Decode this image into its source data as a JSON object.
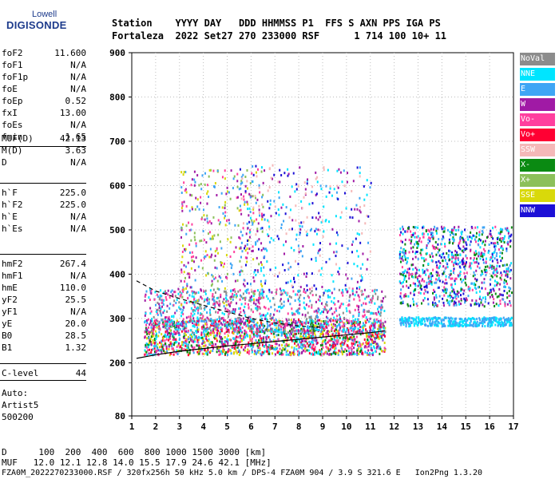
{
  "logo": {
    "top": "Lowell",
    "main": "DIGISONDE"
  },
  "header": {
    "line1": "Station    YYYY DAY   DDD HHMMSS P1  FFS S AXN PPS IGA PS",
    "line2": "Fortaleza  2022 Set27 270 233000 RSF      1 714 100 10+ 11"
  },
  "params": {
    "group1": [
      {
        "label": "foF2",
        "value": "11.600"
      },
      {
        "label": "foF1",
        "value": "N/A"
      },
      {
        "label": "foF1p",
        "value": "N/A"
      },
      {
        "label": "foE",
        "value": "N/A"
      },
      {
        "label": "foEp",
        "value": "0.52"
      },
      {
        "label": "fxI",
        "value": "13.00"
      },
      {
        "label": "foEs",
        "value": "N/A"
      },
      {
        "label": "fmin",
        "value": "1.65"
      }
    ],
    "group2": [
      {
        "label": "MUF(D)",
        "value": "42.13"
      },
      {
        "label": "M(D)",
        "value": "3.63"
      },
      {
        "label": "D",
        "value": "N/A"
      }
    ],
    "group3": [
      {
        "label": "h`F",
        "value": "225.0"
      },
      {
        "label": "h`F2",
        "value": "225.0"
      },
      {
        "label": "h`E",
        "value": "N/A"
      },
      {
        "label": "h`Es",
        "value": "N/A"
      }
    ],
    "group4": [
      {
        "label": "hmF2",
        "value": "267.4"
      },
      {
        "label": "hmF1",
        "value": "N/A"
      },
      {
        "label": "hmE",
        "value": "110.0"
      },
      {
        "label": "yF2",
        "value": "25.5"
      },
      {
        "label": "yF1",
        "value": "N/A"
      },
      {
        "label": "yE",
        "value": "20.0"
      },
      {
        "label": "B0",
        "value": "28.5"
      },
      {
        "label": "B1",
        "value": "1.32"
      }
    ],
    "clevel": {
      "label": "C-level",
      "value": "44"
    },
    "auto": [
      "Auto:",
      "Artist5",
      "500200"
    ]
  },
  "legend": [
    {
      "label": "NoVal",
      "color": "#8c8c8c"
    },
    {
      "label": "NNE",
      "color": "#00e5ff"
    },
    {
      "label": "E",
      "color": "#3ea5f5"
    },
    {
      "label": "W",
      "color": "#a01aa5"
    },
    {
      "label": "Vo-",
      "color": "#ff3f9e"
    },
    {
      "label": "Vo+",
      "color": "#ff0033"
    },
    {
      "label": "SSW",
      "color": "#f5b8b8"
    },
    {
      "label": "X-",
      "color": "#0a8a12"
    },
    {
      "label": "X+",
      "color": "#8cc05a"
    },
    {
      "label": "SSE",
      "color": "#d9d90a"
    },
    {
      "label": "NNW",
      "color": "#1c10d6"
    }
  ],
  "footer": {
    "line1": "D      100  200  400  600  800 1000 1500 3000 [km]",
    "line2": "MUF   12.0 12.1 12.8 14.0 15.5 17.9 24.6 42.1 [MHz]",
    "line3": "FZA0M_2022270233000.RSF / 320fx256h 50 kHz 5.0 km / DPS-4 FZA0M 904 / 3.9 S 321.6 E   Ion2Png 1.3.20"
  },
  "chart_data": {
    "type": "scatter",
    "xlim": [
      1,
      17
    ],
    "ylim": [
      80,
      900
    ],
    "xticks": [
      1,
      2,
      3,
      4,
      5,
      6,
      7,
      8,
      9,
      10,
      11,
      12,
      13,
      14,
      15,
      16,
      17
    ],
    "yticks": [
      80,
      200,
      300,
      400,
      500,
      600,
      700,
      800,
      900
    ],
    "grid": true,
    "legend_position": "right",
    "traces": [
      {
        "name": "trace-lower",
        "x": [
          1.2,
          2.0,
          3.0,
          4.0,
          5.0,
          6.0,
          7.0,
          8.0,
          9.0,
          10.0,
          11.0,
          11.6
        ],
        "y": [
          210,
          218,
          226,
          232,
          238,
          243,
          248,
          253,
          258,
          263,
          268,
          272
        ]
      },
      {
        "name": "trace-dashed",
        "x": [
          1.2,
          2.0,
          3.0,
          4.0,
          5.0,
          6.0,
          7.0,
          8.0,
          9.0
        ],
        "y": [
          385,
          362,
          345,
          330,
          315,
          300,
          290,
          283,
          280
        ],
        "dashed": true
      }
    ],
    "clusters": [
      {
        "x": [
          1.5,
          11.6
        ],
        "y": [
          220,
          300
        ],
        "density": "high",
        "series": [
          "Vo+",
          "Vo-",
          "X-",
          "NNE",
          "E",
          "W",
          "SSE"
        ]
      },
      {
        "x": [
          1.5,
          11.6
        ],
        "y": [
          270,
          370
        ],
        "density": "medium",
        "series": [
          "E",
          "NNE",
          "W",
          "Vo-",
          "NoVal"
        ]
      },
      {
        "x": [
          3.0,
          6.5
        ],
        "y": [
          330,
          640
        ],
        "density": "low",
        "series": [
          "W",
          "SSE",
          "X+",
          "Vo-",
          "E"
        ]
      },
      {
        "x": [
          5.5,
          11.0
        ],
        "y": [
          360,
          650
        ],
        "density": "low",
        "series": [
          "E",
          "NNE",
          "W",
          "SSW",
          "NNW"
        ]
      },
      {
        "x": [
          12.2,
          16.9
        ],
        "y": [
          330,
          510
        ],
        "density": "medium",
        "series": [
          "E",
          "NNE",
          "W",
          "Vo-",
          "X-",
          "NNW"
        ]
      },
      {
        "x": [
          12.2,
          16.9
        ],
        "y": [
          285,
          305
        ],
        "density": "low",
        "series": [
          "E",
          "NNE"
        ]
      }
    ]
  }
}
